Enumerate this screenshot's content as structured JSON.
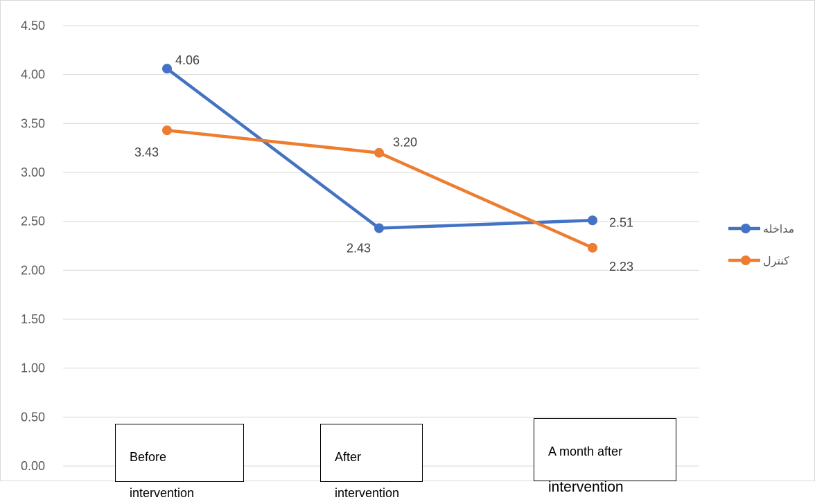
{
  "chart_data": {
    "type": "line",
    "title": "",
    "xlabel": "",
    "ylabel": "",
    "ylim": [
      0,
      4.5
    ],
    "yticks": [
      "0.00",
      "0.50",
      "1.00",
      "1.50",
      "2.00",
      "2.50",
      "3.00",
      "3.50",
      "4.00",
      "4.50"
    ],
    "grid": true,
    "legend_position": "right",
    "categories": [
      "Before intervention",
      "After intervention",
      "A month after intervention"
    ],
    "category_boxes": [
      {
        "line1": "Before",
        "line2": "intervention"
      },
      {
        "line1": "After",
        "line2": "intervention"
      },
      {
        "line1": "A month after",
        "line2": "intervention"
      }
    ],
    "series": [
      {
        "name": "مداخله",
        "color": "#4472C4",
        "values": [
          4.06,
          2.43,
          2.51
        ],
        "labels": [
          "4.06",
          "2.43",
          "2.51"
        ]
      },
      {
        "name": "کنترل",
        "color": "#ED7D31",
        "values": [
          3.43,
          3.2,
          2.23
        ],
        "labels": [
          "3.43",
          "3.20",
          "2.23"
        ]
      }
    ]
  }
}
